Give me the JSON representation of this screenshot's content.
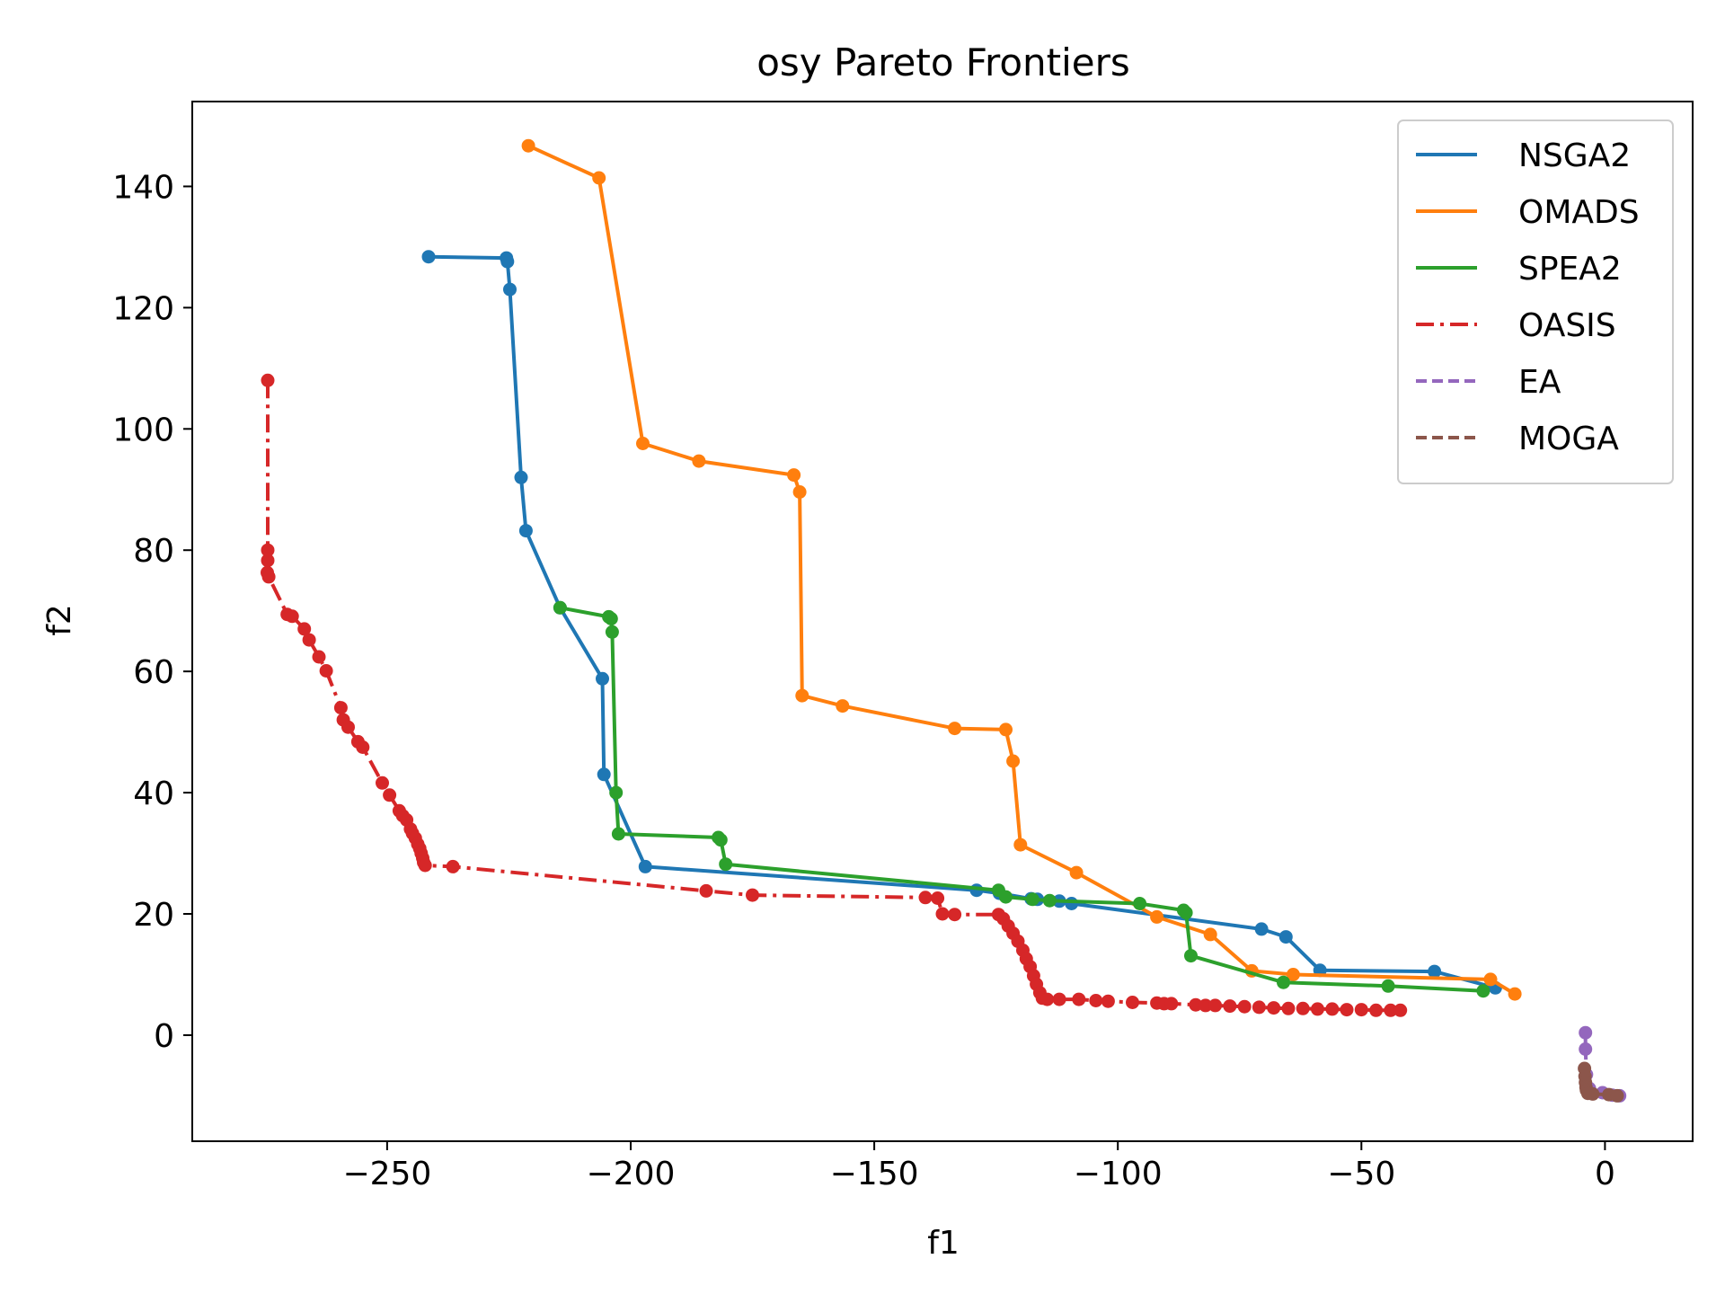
{
  "chart_data": {
    "type": "line",
    "title": "osy Pareto Frontiers",
    "xlabel": "f1",
    "ylabel": "f2",
    "xlim": [
      -290,
      18
    ],
    "ylim": [
      -17.5,
      154
    ],
    "xticks": [
      -250,
      -200,
      -150,
      -100,
      -50,
      0
    ],
    "xtick_labels": [
      "−250",
      "−200",
      "−150",
      "−100",
      "−50",
      "0"
    ],
    "yticks": [
      0,
      20,
      40,
      60,
      80,
      100,
      120,
      140
    ],
    "ytick_labels": [
      "0",
      "20",
      "40",
      "60",
      "80",
      "100",
      "120",
      "140"
    ],
    "grid": false,
    "legend_position": "top-right",
    "series": [
      {
        "name": "NSGA2",
        "color": "#1f77b4",
        "linestyle": "solid",
        "points": [
          [
            -241.5,
            128.4
          ],
          [
            -225.5,
            128.2
          ],
          [
            -225.3,
            127.6
          ],
          [
            -224.8,
            123.0
          ],
          [
            -222.5,
            92.0
          ],
          [
            -221.5,
            83.2
          ],
          [
            -214.5,
            70.5
          ],
          [
            -205.8,
            58.8
          ],
          [
            -205.5,
            43.0
          ],
          [
            -197.0,
            27.8
          ],
          [
            -129.0,
            23.9
          ],
          [
            -124.3,
            23.4
          ],
          [
            -117.8,
            22.5
          ],
          [
            -116.5,
            22.4
          ],
          [
            -112.0,
            22.1
          ],
          [
            -109.5,
            21.7
          ],
          [
            -70.5,
            17.5
          ],
          [
            -65.5,
            16.2
          ],
          [
            -58.5,
            10.7
          ],
          [
            -35.0,
            10.5
          ],
          [
            -22.5,
            7.8
          ]
        ]
      },
      {
        "name": "OMADS",
        "color": "#ff7f0e",
        "linestyle": "solid",
        "points": [
          [
            -221.0,
            146.7
          ],
          [
            -206.5,
            141.4
          ],
          [
            -197.5,
            97.6
          ],
          [
            -186.0,
            94.7
          ],
          [
            -166.5,
            92.4
          ],
          [
            -165.3,
            89.6
          ],
          [
            -164.8,
            56.0
          ],
          [
            -156.5,
            54.3
          ],
          [
            -133.5,
            50.6
          ],
          [
            -123.0,
            50.4
          ],
          [
            -121.5,
            45.2
          ],
          [
            -120.0,
            31.4
          ],
          [
            -108.5,
            26.8
          ],
          [
            -92.0,
            19.5
          ],
          [
            -81.0,
            16.6
          ],
          [
            -72.5,
            10.6
          ],
          [
            -64.0,
            10.0
          ],
          [
            -23.5,
            9.2
          ],
          [
            -18.5,
            6.8
          ]
        ]
      },
      {
        "name": "SPEA2",
        "color": "#2ca02c",
        "linestyle": "solid",
        "points": [
          [
            -214.5,
            70.5
          ],
          [
            -204.5,
            69.0
          ],
          [
            -204.0,
            68.7
          ],
          [
            -203.8,
            66.5
          ],
          [
            -203.0,
            40.0
          ],
          [
            -202.5,
            33.2
          ],
          [
            -182.0,
            32.6
          ],
          [
            -181.5,
            32.2
          ],
          [
            -180.5,
            28.2
          ],
          [
            -124.5,
            23.9
          ],
          [
            -123.0,
            22.8
          ],
          [
            -117.5,
            22.4
          ],
          [
            -114.0,
            22.2
          ],
          [
            -95.5,
            21.7
          ],
          [
            -86.5,
            20.6
          ],
          [
            -86.0,
            20.2
          ],
          [
            -85.0,
            13.1
          ],
          [
            -66.0,
            8.7
          ],
          [
            -44.5,
            8.1
          ],
          [
            -25.0,
            7.3
          ]
        ]
      },
      {
        "name": "OASIS",
        "color": "#d62728",
        "linestyle": "dashdot",
        "points": [
          [
            -274.5,
            108.0
          ],
          [
            -274.5,
            80.0
          ],
          [
            -274.5,
            78.3
          ],
          [
            -274.6,
            76.3
          ],
          [
            -274.3,
            75.6
          ],
          [
            -270.5,
            69.4
          ],
          [
            -269.5,
            69.1
          ],
          [
            -267.0,
            67.0
          ],
          [
            -266.0,
            65.2
          ],
          [
            -264.0,
            62.4
          ],
          [
            -262.5,
            60.1
          ],
          [
            -259.5,
            54.0
          ],
          [
            -259.0,
            52.0
          ],
          [
            -258.0,
            50.8
          ],
          [
            -256.0,
            48.4
          ],
          [
            -255.0,
            47.5
          ],
          [
            -251.0,
            41.6
          ],
          [
            -249.5,
            39.6
          ],
          [
            -247.5,
            37.0
          ],
          [
            -246.8,
            36.2
          ],
          [
            -246.0,
            35.5
          ],
          [
            -245.2,
            34.0
          ],
          [
            -244.8,
            33.3
          ],
          [
            -244.2,
            32.5
          ],
          [
            -243.7,
            31.5
          ],
          [
            -243.3,
            30.8
          ],
          [
            -243.0,
            30.0
          ],
          [
            -242.7,
            29.2
          ],
          [
            -242.5,
            28.5
          ],
          [
            -242.2,
            28.0
          ],
          [
            -236.5,
            27.8
          ],
          [
            -184.5,
            23.8
          ],
          [
            -175.0,
            23.1
          ],
          [
            -139.5,
            22.7
          ],
          [
            -137.0,
            22.6
          ],
          [
            -136.0,
            20.0
          ],
          [
            -133.5,
            19.9
          ],
          [
            -124.5,
            19.9
          ],
          [
            -123.5,
            19.2
          ],
          [
            -122.5,
            18.0
          ],
          [
            -121.5,
            16.8
          ],
          [
            -120.5,
            15.5
          ],
          [
            -119.5,
            14.0
          ],
          [
            -118.8,
            12.6
          ],
          [
            -118.0,
            11.3
          ],
          [
            -117.3,
            9.8
          ],
          [
            -116.7,
            8.4
          ],
          [
            -116.0,
            7.0
          ],
          [
            -115.5,
            6.1
          ],
          [
            -114.5,
            5.9
          ],
          [
            -112.0,
            5.9
          ],
          [
            -108.0,
            5.9
          ],
          [
            -104.5,
            5.7
          ],
          [
            -102.0,
            5.6
          ],
          [
            -97.0,
            5.4
          ],
          [
            -92.0,
            5.3
          ],
          [
            -90.5,
            5.2
          ],
          [
            -89.0,
            5.2
          ],
          [
            -84.0,
            5.0
          ],
          [
            -82.0,
            4.9
          ],
          [
            -80.0,
            4.9
          ],
          [
            -77.0,
            4.8
          ],
          [
            -74.0,
            4.7
          ],
          [
            -71.0,
            4.6
          ],
          [
            -68.0,
            4.5
          ],
          [
            -65.0,
            4.4
          ],
          [
            -62.0,
            4.4
          ],
          [
            -59.0,
            4.3
          ],
          [
            -56.0,
            4.3
          ],
          [
            -53.0,
            4.2
          ],
          [
            -50.0,
            4.2
          ],
          [
            -47.0,
            4.1
          ],
          [
            -44.0,
            4.1
          ],
          [
            -42.0,
            4.1
          ]
        ]
      },
      {
        "name": "EA",
        "color": "#9467bd",
        "linestyle": "dashed",
        "points": [
          [
            -4.0,
            0.4
          ],
          [
            -4.0,
            -2.3
          ],
          [
            -3.8,
            -6.5
          ],
          [
            -3.2,
            -8.8
          ],
          [
            -0.5,
            -9.5
          ],
          [
            1.5,
            -9.9
          ],
          [
            3.0,
            -10.0
          ]
        ]
      },
      {
        "name": "MOGA",
        "color": "#8c564b",
        "linestyle": "dashed",
        "points": [
          [
            -4.2,
            -5.5
          ],
          [
            -4.1,
            -6.8
          ],
          [
            -4.0,
            -7.8
          ],
          [
            -3.9,
            -8.6
          ],
          [
            -3.8,
            -9.1
          ],
          [
            -3.5,
            -9.6
          ],
          [
            -2.5,
            -9.7
          ],
          [
            0.8,
            -9.8
          ],
          [
            2.5,
            -10.0
          ]
        ]
      }
    ]
  }
}
